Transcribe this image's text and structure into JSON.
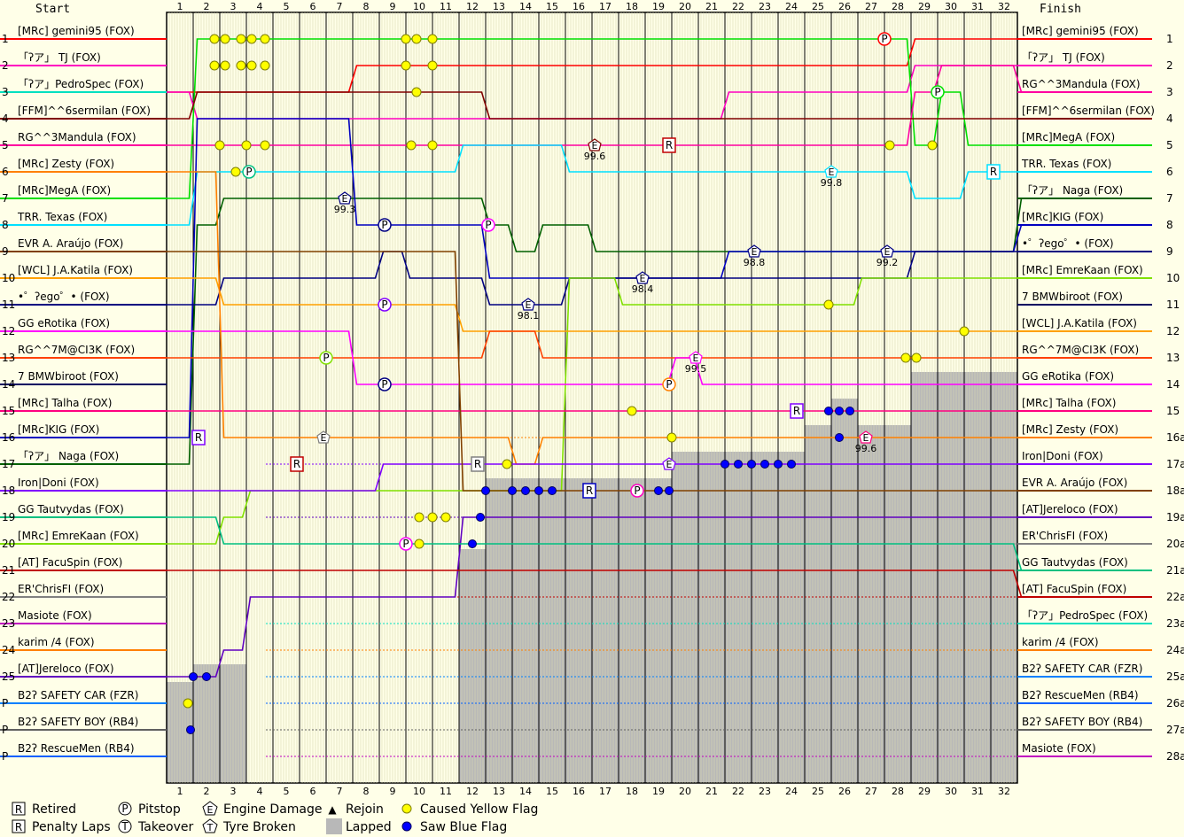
{
  "chart_data": {
    "type": "line",
    "title": "",
    "start_label": "Start",
    "finish_label": "Finish",
    "laps": [
      "1",
      "2",
      "3",
      "4",
      "5",
      "6",
      "7",
      "8",
      "9",
      "10",
      "11",
      "12",
      "13",
      "14",
      "15",
      "16",
      "17",
      "18",
      "19",
      "20",
      "21",
      "22",
      "23",
      "24",
      "25",
      "26",
      "27",
      "28",
      "29",
      "30",
      "31",
      "32"
    ],
    "start_positions": [
      "1",
      "2",
      "3",
      "4",
      "5",
      "6",
      "7",
      "8",
      "9",
      "10",
      "11",
      "12",
      "13",
      "14",
      "15",
      "16",
      "17",
      "18",
      "19",
      "20",
      "21",
      "22",
      "23",
      "24",
      "25",
      "P",
      "P",
      "P"
    ],
    "finish_positions": [
      "1",
      "2",
      "3",
      "4",
      "5",
      "6",
      "7",
      "8",
      "9",
      "10",
      "11",
      "12",
      "13",
      "14",
      "15",
      "16a",
      "17a",
      "18a",
      "19a",
      "20a",
      "21a",
      "22a",
      "23a",
      "24a",
      "25a",
      "26a",
      "27a",
      "28a"
    ],
    "start_grid": [
      {
        "name": "[MRc] gemini95 (FOX)",
        "color": "#ff0000"
      },
      {
        "name": "「ʔア」 TJ (FOX)",
        "color": "#ff00c0"
      },
      {
        "name": "「ʔア」PedroSpec (FOX)",
        "color": "#00e0c0"
      },
      {
        "name": "[FFM]^^6sermilan (FOX)",
        "color": "#800000"
      },
      {
        "name": "RG^^3Mandula (FOX)",
        "color": "#ff00a0"
      },
      {
        "name": "[MRc] Zesty (FOX)",
        "color": "#ff8000"
      },
      {
        "name": "[MRc]MegA (FOX)",
        "color": "#00e000"
      },
      {
        "name": "TRR. Texas (FOX)",
        "color": "#00e0ff"
      },
      {
        "name": "EVR A. Araújo (FOX)",
        "color": "#804000"
      },
      {
        "name": "[WCL] J.A.Katila (FOX)",
        "color": "#ffa000"
      },
      {
        "name": "•゜ʔego゜• (FOX)",
        "color": "#000080"
      },
      {
        "name": "GG eRotika (FOX)",
        "color": "#ff00ff"
      },
      {
        "name": "RG^^7M@CI3K (FOX)",
        "color": "#ff4000"
      },
      {
        "name": "7 BMWbiroot (FOX)",
        "color": "#000060"
      },
      {
        "name": "[MRc] Talha (FOX)",
        "color": "#ff0080"
      },
      {
        "name": "[MRc]KIG (FOX)",
        "color": "#0000c0"
      },
      {
        "name": "「ʔア」 Naga (FOX)",
        "color": "#006000"
      },
      {
        "name": "Iron|Doni (FOX)",
        "color": "#8000ff"
      },
      {
        "name": "GG Tautvydas (FOX)",
        "color": "#00c080"
      },
      {
        "name": "[MRc] EmreKaan (FOX)",
        "color": "#80e000"
      },
      {
        "name": "[AT] FacuSpin (FOX)",
        "color": "#c00000"
      },
      {
        "name": "ER'ChrisFI (FOX)",
        "color": "#808080"
      },
      {
        "name": "Masiote (FOX)",
        "color": "#c000c0"
      },
      {
        "name": "karim /4 (FOX)",
        "color": "#ff8000"
      },
      {
        "name": "[AT]Jereloco (FOX)",
        "color": "#6000c0"
      },
      {
        "name": "B2ʔ SAFETY CAR (FZR)",
        "color": "#0080ff"
      },
      {
        "name": "B2ʔ SAFETY BOY (RB4)",
        "color": "#606060"
      },
      {
        "name": "B2ʔ RescueMen (RB4)",
        "color": "#0060ff"
      }
    ],
    "finish_order": [
      {
        "name": "[MRc] gemini95 (FOX)",
        "color": "#ff0000"
      },
      {
        "name": "「ʔア」 TJ (FOX)",
        "color": "#ff00c0"
      },
      {
        "name": "RG^^3Mandula (FOX)",
        "color": "#ff00a0"
      },
      {
        "name": "[FFM]^^6sermilan (FOX)",
        "color": "#800000"
      },
      {
        "name": "[MRc]MegA (FOX)",
        "color": "#00e000"
      },
      {
        "name": "TRR. Texas (FOX)",
        "color": "#00e0ff"
      },
      {
        "name": "「ʔア」 Naga (FOX)",
        "color": "#006000"
      },
      {
        "name": "[MRc]KIG (FOX)",
        "color": "#0000c0"
      },
      {
        "name": "•゜ʔego゜• (FOX)",
        "color": "#000080"
      },
      {
        "name": "[MRc] EmreKaan (FOX)",
        "color": "#80e000"
      },
      {
        "name": "7 BMWbiroot (FOX)",
        "color": "#000060"
      },
      {
        "name": "[WCL] J.A.Katila (FOX)",
        "color": "#ffa000"
      },
      {
        "name": "RG^^7M@CI3K (FOX)",
        "color": "#ff4000"
      },
      {
        "name": "GG eRotika (FOX)",
        "color": "#ff00ff"
      },
      {
        "name": "[MRc] Talha (FOX)",
        "color": "#ff0080"
      },
      {
        "name": "[MRc] Zesty (FOX)",
        "color": "#ff8000"
      },
      {
        "name": "Iron|Doni (FOX)",
        "color": "#8000ff"
      },
      {
        "name": "EVR A. Araújo (FOX)",
        "color": "#804000"
      },
      {
        "name": "[AT]Jereloco (FOX)",
        "color": "#6000c0"
      },
      {
        "name": "ER'ChrisFI (FOX)",
        "color": "#808080"
      },
      {
        "name": "GG Tautvydas (FOX)",
        "color": "#00c080"
      },
      {
        "name": "[AT] FacuSpin (FOX)",
        "color": "#c00000"
      },
      {
        "name": "「ʔア」PedroSpec (FOX)",
        "color": "#00e0c0"
      },
      {
        "name": "karim /4 (FOX)",
        "color": "#ff8000"
      },
      {
        "name": "B2ʔ SAFETY CAR (FZR)",
        "color": "#0080ff"
      },
      {
        "name": "B2ʔ RescueMen (RB4)",
        "color": "#0060ff"
      },
      {
        "name": "B2ʔ SAFETY BOY (RB4)",
        "color": "#606060"
      },
      {
        "name": "Masiote (FOX)",
        "color": "#c000c0"
      }
    ],
    "traces": [
      {
        "name": "[MRc] gemini95 (FOX)",
        "color": "#ff0000",
        "positions": [
          3,
          3,
          3,
          3,
          3,
          3,
          3,
          2,
          2,
          2,
          2,
          2,
          2,
          2,
          2,
          2,
          2,
          2,
          2,
          2,
          2,
          2,
          2,
          2,
          2,
          2,
          2,
          2,
          1,
          1,
          1,
          1,
          1
        ]
      },
      {
        "name": "「ʔア」 TJ (FOX)",
        "color": "#ff00c0",
        "positions": [
          3,
          4,
          4,
          4,
          4,
          4,
          4,
          4,
          4,
          4,
          4,
          4,
          4,
          4,
          4,
          4,
          4,
          4,
          4,
          4,
          4,
          3,
          3,
          3,
          3,
          3,
          3,
          3,
          2,
          2,
          2,
          2,
          2
        ]
      },
      {
        "name": "[MRc]MegA (FOX)",
        "color": "#00e000",
        "positions": [
          7,
          1,
          1,
          1,
          1,
          1,
          1,
          1,
          1,
          1,
          1,
          1,
          1,
          1,
          1,
          1,
          1,
          1,
          1,
          1,
          1,
          1,
          1,
          1,
          1,
          1,
          1,
          1,
          5,
          3,
          5,
          5,
          5
        ]
      },
      {
        "name": "RG^^3Mandula (FOX)",
        "color": "#ff00a0",
        "positions": [
          5,
          5,
          5,
          5,
          5,
          5,
          5,
          5,
          5,
          5,
          5,
          5,
          5,
          5,
          5,
          5,
          5,
          5,
          5,
          5,
          5,
          5,
          5,
          5,
          5,
          5,
          5,
          5,
          3,
          2,
          2,
          2,
          3
        ]
      },
      {
        "name": "[FFM]^^6sermilan (FOX)",
        "color": "#800000",
        "positions": [
          4,
          3,
          3,
          3,
          3,
          3,
          3,
          3,
          3,
          3,
          3,
          3,
          4,
          4,
          4,
          4,
          4,
          4,
          4,
          4,
          4,
          4,
          4,
          4,
          4,
          4,
          4,
          4,
          4,
          4,
          4,
          4,
          4
        ]
      },
      {
        "name": "TRR. Texas (FOX)",
        "color": "#00e0ff",
        "positions": [
          8,
          6,
          6,
          6,
          6,
          6,
          6,
          6,
          6,
          6,
          6,
          5,
          5,
          5,
          5,
          6,
          6,
          6,
          6,
          6,
          6,
          6,
          6,
          6,
          6,
          6,
          6,
          6,
          7,
          7,
          6,
          6,
          6
        ]
      },
      {
        "name": "「ʔア」 Naga (FOX)",
        "color": "#006000",
        "positions": [
          17,
          8,
          7,
          7,
          7,
          7,
          7,
          7,
          7,
          7,
          7,
          7,
          8,
          9,
          8,
          8,
          9,
          9,
          9,
          9,
          9,
          9,
          9,
          9,
          9,
          9,
          9,
          9,
          9,
          9,
          9,
          9,
          7
        ]
      },
      {
        "name": "[MRc]KIG (FOX)",
        "color": "#0000c0",
        "positions": [
          16,
          4,
          4,
          4,
          4,
          4,
          4,
          8,
          8,
          8,
          8,
          8,
          10,
          10,
          10,
          10,
          10,
          10,
          10,
          10,
          10,
          9,
          9,
          9,
          9,
          9,
          9,
          9,
          9,
          9,
          9,
          9,
          8
        ]
      },
      {
        "name": "•゜ʔego゜• (FOX)",
        "color": "#000080",
        "positions": [
          11,
          11,
          10,
          10,
          10,
          10,
          10,
          10,
          9,
          10,
          10,
          10,
          11,
          11,
          11,
          10,
          10,
          10,
          10,
          10,
          10,
          10,
          10,
          10,
          10,
          10,
          10,
          10,
          9,
          9,
          9,
          9,
          9
        ]
      },
      {
        "name": "[MRc] EmreKaan (FOX)",
        "color": "#80e000",
        "positions": [
          20,
          20,
          19,
          18,
          18,
          18,
          18,
          18,
          18,
          18,
          18,
          18,
          18,
          18,
          18,
          10,
          10,
          11,
          11,
          11,
          11,
          11,
          11,
          11,
          11,
          11,
          10,
          10,
          10,
          10,
          10,
          10,
          10
        ]
      },
      {
        "name": "[WCL] J.A.Katila (FOX)",
        "color": "#ffa000",
        "positions": [
          10,
          10,
          11,
          11,
          11,
          11,
          11,
          11,
          11,
          11,
          11,
          12,
          12,
          12,
          12,
          12,
          12,
          12,
          12,
          12,
          12,
          12,
          12,
          12,
          12,
          12,
          12,
          12,
          12,
          12,
          12,
          12,
          12
        ]
      },
      {
        "name": "RG^^7M@CI3K (FOX)",
        "color": "#ff4000",
        "positions": [
          13,
          13,
          13,
          13,
          13,
          13,
          13,
          13,
          13,
          13,
          13,
          13,
          12,
          12,
          13,
          13,
          13,
          13,
          13,
          13,
          13,
          13,
          13,
          13,
          13,
          13,
          13,
          13,
          13,
          13,
          13,
          13,
          13
        ]
      },
      {
        "name": "GG eRotika (FOX)",
        "color": "#ff00ff",
        "positions": [
          12,
          12,
          12,
          12,
          12,
          12,
          12,
          14,
          14,
          14,
          14,
          14,
          14,
          14,
          14,
          14,
          14,
          14,
          14,
          13,
          14,
          14,
          14,
          14,
          14,
          14,
          14,
          14,
          14,
          14,
          14,
          14,
          14
        ]
      },
      {
        "name": "[MRc] Talha (FOX)",
        "color": "#ff0080",
        "positions": [
          15,
          15,
          15,
          15,
          15,
          15,
          15,
          15,
          15,
          15,
          15,
          15,
          15,
          15,
          15,
          15,
          15,
          15,
          15,
          15,
          15,
          15,
          15,
          15,
          15,
          15,
          15,
          15,
          15,
          15,
          15,
          15,
          15
        ]
      },
      {
        "name": "[MRc] Zesty (FOX)",
        "color": "#ff8000",
        "positions": [
          6,
          6,
          16,
          16,
          16,
          16,
          16,
          16,
          16,
          16,
          16,
          16,
          16,
          17,
          16,
          16,
          16,
          16,
          16,
          16,
          16,
          16,
          16,
          16,
          16,
          16,
          16,
          16,
          16,
          16,
          16,
          16,
          16
        ]
      },
      {
        "name": "Iron|Doni (FOX)",
        "color": "#8000ff",
        "positions": [
          18,
          18,
          18,
          18,
          18,
          18,
          18,
          18,
          17,
          17,
          17,
          17,
          17,
          17,
          17,
          17,
          17,
          17,
          17,
          17,
          17,
          17,
          17,
          17,
          17,
          17,
          17,
          17,
          17,
          17,
          17,
          17,
          17
        ]
      },
      {
        "name": "EVR A. Araújo (FOX)",
        "color": "#804000",
        "positions": [
          9,
          9,
          9,
          9,
          9,
          9,
          9,
          9,
          9,
          9,
          9,
          18,
          18,
          18,
          18,
          18,
          18,
          18,
          18,
          18,
          18,
          18,
          18,
          18,
          18,
          18,
          18,
          18,
          18,
          18,
          18,
          18,
          18
        ]
      },
      {
        "name": "[AT]Jereloco (FOX)",
        "color": "#6000c0",
        "positions": [
          25,
          25,
          24,
          22,
          22,
          22,
          22,
          22,
          22,
          22,
          22,
          19,
          19,
          19,
          19,
          19,
          19,
          19,
          19,
          19,
          19,
          19,
          19,
          19,
          19,
          19,
          19,
          19,
          19,
          19,
          19,
          19,
          19
        ]
      },
      {
        "name": "GG Tautvydas (FOX)",
        "color": "#00c080",
        "positions": [
          19,
          19,
          20,
          20,
          20,
          20,
          20,
          20,
          20,
          20,
          20,
          20,
          20,
          20,
          20,
          20,
          20,
          20,
          20,
          20,
          20,
          20,
          20,
          20,
          20,
          20,
          20,
          20,
          20,
          20,
          20,
          20,
          21
        ]
      },
      {
        "name": "[AT] FacuSpin (FOX)",
        "color": "#c00000",
        "positions": [
          21,
          21,
          21,
          21,
          21,
          21,
          21,
          21,
          21,
          21,
          21,
          21,
          21,
          21,
          21,
          21,
          21,
          21,
          21,
          21,
          21,
          21,
          21,
          21,
          21,
          21,
          21,
          21,
          21,
          21,
          21,
          21,
          22
        ]
      }
    ],
    "series_style": "step-line per driver across laps",
    "lapped_shading": "gray bars from bottom",
    "annotations": [
      "99.6",
      "99.3",
      "99.8",
      "98.8",
      "99.2",
      "98.4",
      "98.1",
      "99.5",
      "99.6"
    ],
    "grid": true,
    "legend_position": "bottom-left"
  },
  "legend": {
    "items": [
      {
        "symbol": "R",
        "label": "Retired",
        "shape": "box"
      },
      {
        "symbol": "R",
        "label": "Penalty Laps",
        "shape": "box"
      },
      {
        "symbol": "P",
        "label": "Pitstop",
        "shape": "circle"
      },
      {
        "symbol": "T",
        "label": "Takeover",
        "shape": "circle"
      },
      {
        "symbol": "E",
        "label": "Engine Damage",
        "shape": "pentagon"
      },
      {
        "symbol": "T",
        "label": "Tyre Broken",
        "shape": "pentagon"
      },
      {
        "symbol": "▲",
        "label": "Rejoin",
        "shape": "triangle"
      },
      {
        "symbol": "",
        "label": "Lapped",
        "shape": "gray-box"
      },
      {
        "symbol": "",
        "label": "Caused Yellow Flag",
        "shape": "yellow-dot"
      },
      {
        "symbol": "",
        "label": "Saw Blue Flag",
        "shape": "blue-dot"
      }
    ],
    "yellow": "#ffff00",
    "blue": "#0000ff",
    "lapped": "#b8b8b8"
  }
}
